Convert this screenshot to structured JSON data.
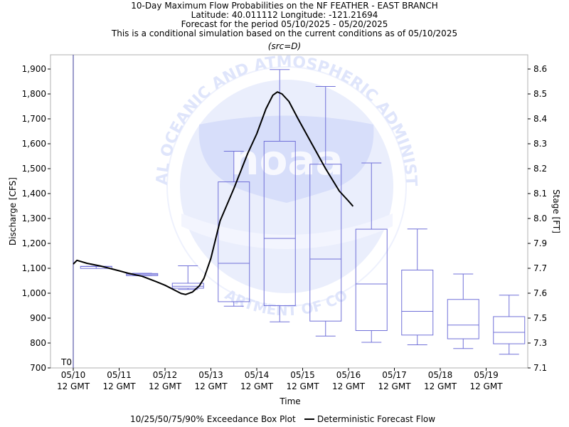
{
  "title_lines": [
    "10-Day Maximum Flow Probabilities on the NF FEATHER - EAST BRANCH",
    "Latitude: 40.011112 Longitude: -121.21694",
    "Forecast for the period 05/10/2025 - 05/20/2025",
    "This is a conditional simulation based on the current conditions as of 05/10/2025"
  ],
  "source_note": "(src=D)",
  "t0_label": "T0",
  "watermark": {
    "logo_text": "noaa",
    "ring_text_top": "NATIONAL OCEANIC AND ATMOSPHERIC ADMINISTRATION",
    "ring_text_bottom": "U.S. DEPARTMENT OF COMMERCE"
  },
  "legend": {
    "box_label": "10/25/50/75/90% Exceedance Box Plot",
    "line_label": "Deterministic Forecast Flow"
  },
  "colors": {
    "box": "#7070d8",
    "forecast_line": "#000000",
    "watermark": "#dde4fb",
    "t0_line": "#3a3a9a"
  },
  "chart_data": {
    "type": "box",
    "xlabel": "Time",
    "ylabel_left": "Discharge [CFS]",
    "ylabel_right": "Stage [FT]",
    "ylim_left": [
      700,
      1950
    ],
    "ylim_right": [
      7.1,
      8.65
    ],
    "x_ticks": [
      {
        "top": "05/10",
        "bottom": "12 GMT"
      },
      {
        "top": "05/11",
        "bottom": "12 GMT"
      },
      {
        "top": "05/12",
        "bottom": "12 GMT"
      },
      {
        "top": "05/13",
        "bottom": "12 GMT"
      },
      {
        "top": "05/14",
        "bottom": "12 GMT"
      },
      {
        "top": "05/15",
        "bottom": "12 GMT"
      },
      {
        "top": "05/16",
        "bottom": "12 GMT"
      },
      {
        "top": "05/17",
        "bottom": "12 GMT"
      },
      {
        "top": "05/18",
        "bottom": "12 GMT"
      },
      {
        "top": "05/19",
        "bottom": "12 GMT"
      }
    ],
    "y_ticks_left": [
      "700",
      "800",
      "900",
      "1,000",
      "1,100",
      "1,200",
      "1,300",
      "1,400",
      "1,500",
      "1,600",
      "1,700",
      "1,800",
      "1,900"
    ],
    "y_ticks_left_values": [
      700,
      800,
      900,
      1000,
      1100,
      1200,
      1300,
      1400,
      1500,
      1600,
      1700,
      1800,
      1900
    ],
    "y_ticks_right": [
      "7.1",
      "7.3",
      "7.5",
      "7.6",
      "7.7",
      "7.9",
      "8.0",
      "8.1",
      "8.2",
      "8.3",
      "8.4",
      "8.5",
      "8.6"
    ],
    "y_ticks_right_values": [
      700,
      800,
      900,
      1000,
      1100,
      1200,
      1300,
      1400,
      1500,
      1600,
      1700,
      1800,
      1900
    ],
    "boxes": [
      {
        "day": 0.5,
        "p10": 1107,
        "p25": 1107,
        "p50": 1107,
        "p75": 1108,
        "p90": 1108
      },
      {
        "day": 1.5,
        "p10": 1070,
        "p25": 1072,
        "p50": 1075,
        "p75": 1079,
        "p90": 1080
      },
      {
        "day": 2.5,
        "p10": 1015,
        "p25": 1020,
        "p50": 1028,
        "p75": 1040,
        "p90": 1110
      },
      {
        "day": 3.5,
        "p10": 948,
        "p25": 966,
        "p50": 1120,
        "p75": 1447,
        "p90": 1570
      },
      {
        "day": 4.5,
        "p10": 885,
        "p25": 950,
        "p50": 1220,
        "p75": 1610,
        "p90": 1898
      },
      {
        "day": 5.5,
        "p10": 828,
        "p25": 888,
        "p50": 1137,
        "p75": 1518,
        "p90": 1830
      },
      {
        "day": 6.5,
        "p10": 803,
        "p25": 850,
        "p50": 1037,
        "p75": 1257,
        "p90": 1523
      },
      {
        "day": 7.5,
        "p10": 793,
        "p25": 832,
        "p50": 927,
        "p75": 1093,
        "p90": 1258
      },
      {
        "day": 8.5,
        "p10": 778,
        "p25": 817,
        "p50": 872,
        "p75": 975,
        "p90": 1077
      },
      {
        "day": 9.5,
        "p10": 755,
        "p25": 797,
        "p50": 843,
        "p75": 906,
        "p90": 992
      }
    ],
    "forecast": {
      "x": [
        0.0,
        0.08,
        0.3,
        0.6,
        1.0,
        1.2,
        1.5,
        1.8,
        2.0,
        2.2,
        2.35,
        2.45,
        2.6,
        2.75,
        2.85,
        3.0,
        3.2,
        3.5,
        3.8,
        4.0,
        4.2,
        4.35,
        4.45,
        4.55,
        4.7,
        4.9,
        5.2,
        5.5,
        5.8,
        6.0,
        6.1
      ],
      "y": [
        1117,
        1132,
        1120,
        1109,
        1090,
        1080,
        1068,
        1047,
        1032,
        1013,
        999,
        995,
        1005,
        1030,
        1060,
        1140,
        1290,
        1420,
        1560,
        1640,
        1740,
        1795,
        1808,
        1800,
        1770,
        1700,
        1600,
        1500,
        1410,
        1370,
        1349
      ]
    }
  }
}
